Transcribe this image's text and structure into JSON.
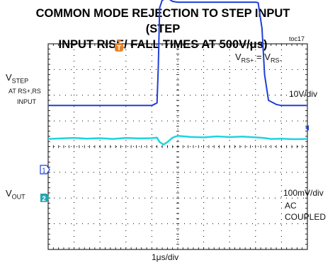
{
  "title_line1": "COMMON MODE REJECTION TO STEP INPUT (STEP",
  "title_line2": "INPUT RISE/ FALL TIMES AT 500V/μs)",
  "toc": "toc17",
  "formula": {
    "v1": "V",
    "s1": "RS+",
    "eq": " = ",
    "v2": "V",
    "s2": "RS-"
  },
  "vstep": {
    "v": "V",
    "sub": "STEP",
    "line2": "AT RS+,RS",
    "line3": "INPUT"
  },
  "vout": {
    "v": "V",
    "sub": "OUT"
  },
  "ch1_scale": "10V/div",
  "ch2_scale": "100mV/div",
  "ch2_coupling_1": "AC",
  "ch2_coupling_2": "COUPLED",
  "time_scale": "1μs/div",
  "ch1_marker": "1",
  "ch2_marker": "2",
  "trigger_marker": "T",
  "colors": {
    "ch1": "#1f3fd6",
    "ch2": "#1fd4e0",
    "trigger": "#e8822a",
    "grid": "#000000"
  },
  "chart_data": {
    "type": "line",
    "title": "COMMON MODE REJECTION TO STEP INPUT (STEP INPUT RISE/ FALL TIMES AT 500V/μs)",
    "xlabel": "1μs/div",
    "grid": true,
    "xlim": [
      0,
      10
    ],
    "divisions": {
      "x": 10,
      "y": 8
    },
    "series": [
      {
        "name": "V_STEP",
        "scale": "10V/div",
        "ground_div": 5.6,
        "points": [
          [
            0,
            0
          ],
          [
            1,
            0
          ],
          [
            2,
            0
          ],
          [
            3,
            0
          ],
          [
            4,
            0
          ],
          [
            4.2,
            0.1
          ],
          [
            4.25,
            1.5
          ],
          [
            4.3,
            3.8
          ],
          [
            4.4,
            4.1
          ],
          [
            4.6,
            4.18
          ],
          [
            4.8,
            4.05
          ],
          [
            5,
            4.02
          ],
          [
            6,
            4.02
          ],
          [
            7,
            4.02
          ],
          [
            8,
            4.02
          ],
          [
            8.1,
            4.0
          ],
          [
            8.25,
            3.0
          ],
          [
            8.35,
            1.2
          ],
          [
            8.5,
            0.2
          ],
          [
            8.8,
            0.04
          ],
          [
            9,
            0
          ],
          [
            10,
            0
          ]
        ]
      },
      {
        "name": "V_OUT",
        "scale": "100mV/div",
        "coupling": "AC COUPLED",
        "ground_div": 4.3,
        "points": [
          [
            0,
            0
          ],
          [
            0.5,
            0.02
          ],
          [
            1,
            0.04
          ],
          [
            1.5,
            0.01
          ],
          [
            2,
            0.03
          ],
          [
            2.5,
            0.0
          ],
          [
            3,
            0.04
          ],
          [
            3.5,
            0.02
          ],
          [
            4,
            0.03
          ],
          [
            4.2,
            0.05
          ],
          [
            4.3,
            -0.12
          ],
          [
            4.45,
            -0.22
          ],
          [
            4.6,
            -0.12
          ],
          [
            4.8,
            0.05
          ],
          [
            5,
            0.12
          ],
          [
            5.5,
            0.08
          ],
          [
            6,
            0.06
          ],
          [
            6.5,
            0.1
          ],
          [
            7,
            0.07
          ],
          [
            7.5,
            0.09
          ],
          [
            8,
            0.06
          ],
          [
            8.3,
            0.04
          ],
          [
            8.6,
            0.0
          ],
          [
            9,
            0.01
          ],
          [
            9.5,
            -0.01
          ],
          [
            10,
            0.0
          ]
        ]
      }
    ]
  }
}
